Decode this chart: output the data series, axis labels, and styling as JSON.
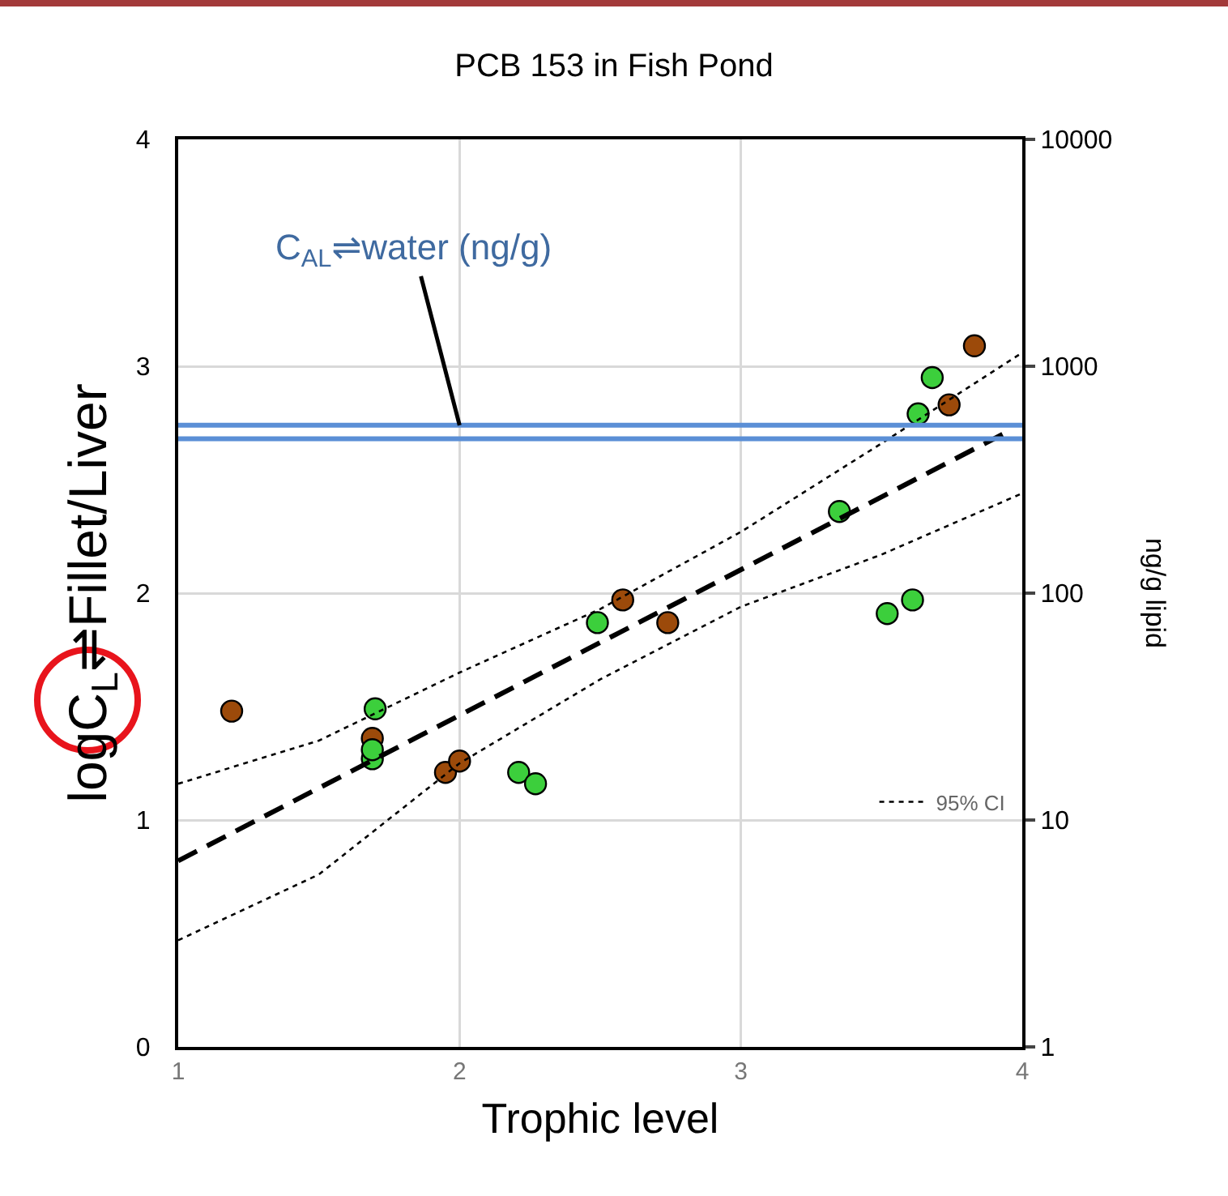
{
  "chart_data": {
    "type": "scatter",
    "title": "PCB 153 in Fish Pond",
    "xlabel": "Trophic level",
    "ylabel": "logC$_{L}$⇌Fillet/Liver",
    "y2label": "ng/g lipid",
    "annotations": [
      {
        "text": "C$_{AL}$⇌water (ng/g)",
        "x": 2,
        "y": 2.74
      }
    ],
    "xlim": [
      1,
      4
    ],
    "xticks": [
      1,
      2,
      3,
      4
    ],
    "ylim": [
      0,
      4
    ],
    "yticks": [
      0,
      1,
      2,
      3,
      4
    ],
    "y2lim": [
      1,
      10000
    ],
    "y2ticks": [
      1,
      10,
      100,
      1000,
      10000
    ],
    "log": "y2",
    "grid": true,
    "legend": "bottom right",
    "marker": "circle",
    "series": [
      {
        "color": "#9c4a0a",
        "x": [
          1.19,
          1.69,
          1.95,
          2.0,
          2.58,
          2.74,
          3.74,
          3.83
        ],
        "values": [
          1.48,
          1.36,
          1.21,
          1.26,
          1.97,
          1.87,
          2.83,
          3.09
        ]
      },
      {
        "color": "#3ccf3c",
        "x": [
          1.7,
          1.69,
          1.69,
          2.21,
          2.27,
          2.49,
          3.35,
          3.52,
          3.61,
          3.63,
          3.68
        ],
        "values": [
          1.49,
          1.27,
          1.31,
          1.21,
          1.16,
          1.87,
          2.36,
          1.91,
          1.97,
          2.79,
          2.95
        ]
      },
      {
        "type": "line",
        "color": "#000000",
        "marker": "none",
        "line_style": "dashed",
        "x": [
          1,
          3.93
        ],
        "values": [
          0.82,
          2.7
        ]
      },
      {
        "type": "line",
        "name": "95% CI",
        "color": "#000000",
        "marker": "none",
        "line_style": "dotted",
        "x": [
          1,
          1.5,
          2,
          2.5,
          3,
          3.5,
          4
        ],
        "values": [
          1.16,
          1.35,
          1.65,
          1.93,
          2.27,
          2.66,
          3.06
        ]
      },
      {
        "type": "line",
        "color": "#000000",
        "marker": "none",
        "line_style": "dotted",
        "x": [
          1,
          1.5,
          2,
          2.5,
          3,
          3.5,
          4
        ],
        "values": [
          0.47,
          0.76,
          1.25,
          1.62,
          1.94,
          2.17,
          2.44
        ]
      }
    ],
    "ref_lines": [
      {
        "axis": "y",
        "value": 2.74,
        "color": "#5b8fd6"
      },
      {
        "axis": "y",
        "value": 2.68,
        "color": "#5b8fd6"
      }
    ]
  }
}
